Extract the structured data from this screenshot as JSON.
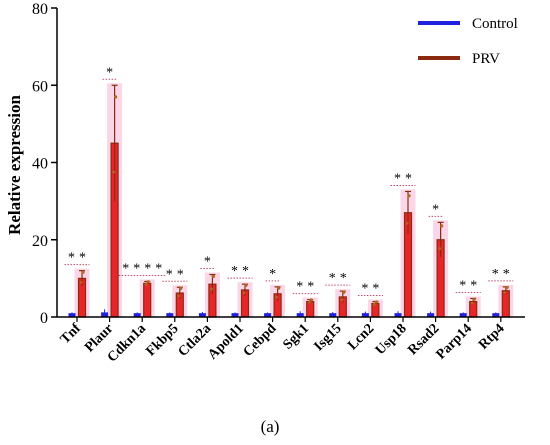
{
  "panel_label": "(a)",
  "colors": {
    "control": "#2020e0",
    "prv": "#8b2a10",
    "prv_fill": "#e8262a",
    "halo": "#f7c6de",
    "axis": "#000000"
  },
  "chart_data": {
    "type": "bar",
    "ylabel": "Relative expression",
    "xlabel": "",
    "ylim": [
      0,
      80
    ],
    "yticks": [
      0,
      20,
      40,
      60,
      80
    ],
    "grid": false,
    "legend_position": "top-right",
    "categories": [
      "Tnf",
      "Plaur",
      "Cdkn1a",
      "Fkbp5",
      "Ctla2a",
      "Apold1",
      "Cebpd",
      "Sgk1",
      "Isg15",
      "Lcn2",
      "Usp18",
      "Rsad2",
      "Parp14",
      "Rtp4"
    ],
    "series": [
      {
        "name": "Control",
        "values": [
          1,
          1.2,
          1,
          1,
          1,
          1,
          1,
          1,
          1,
          1,
          1,
          1,
          1,
          1
        ],
        "errors": [
          0.2,
          0.8,
          0.2,
          0.2,
          0.3,
          0.2,
          0.2,
          0.5,
          0.3,
          0.4,
          0.5,
          0.4,
          0.2,
          0.2
        ]
      },
      {
        "name": "PRV",
        "values": [
          10,
          45,
          8.7,
          6.2,
          8.5,
          7,
          6,
          4,
          5.2,
          3.5,
          27,
          20,
          4,
          6.8
        ],
        "errors": [
          2,
          15,
          0.5,
          1.5,
          2.5,
          1.5,
          1.8,
          0.5,
          1.5,
          0.5,
          5.5,
          4.5,
          0.8,
          1
        ]
      }
    ],
    "significance": [
      {
        "category": "Tnf",
        "stars": [
          "*",
          "*"
        ]
      },
      {
        "category": "Plaur",
        "stars": [
          "*"
        ]
      },
      {
        "category": "Cdkn1a",
        "stars": [
          "*",
          "*",
          "*",
          "*"
        ]
      },
      {
        "category": "Fkbp5",
        "stars": [
          "*",
          "*"
        ]
      },
      {
        "category": "Ctla2a",
        "stars": [
          "*"
        ]
      },
      {
        "category": "Apold1",
        "stars": [
          "*",
          "*"
        ]
      },
      {
        "category": "Cebpd",
        "stars": [
          "*"
        ]
      },
      {
        "category": "Sgk1",
        "stars": [
          "*",
          "*"
        ]
      },
      {
        "category": "Isg15",
        "stars": [
          "*",
          "*"
        ]
      },
      {
        "category": "Lcn2",
        "stars": [
          "*",
          "*"
        ]
      },
      {
        "category": "Usp18",
        "stars": [
          "*",
          "*"
        ]
      },
      {
        "category": "Rsad2",
        "stars": [
          "*"
        ]
      },
      {
        "category": "Parp14",
        "stars": [
          "*",
          "*"
        ]
      },
      {
        "category": "Rtp4",
        "stars": [
          "*",
          "*"
        ]
      }
    ]
  }
}
